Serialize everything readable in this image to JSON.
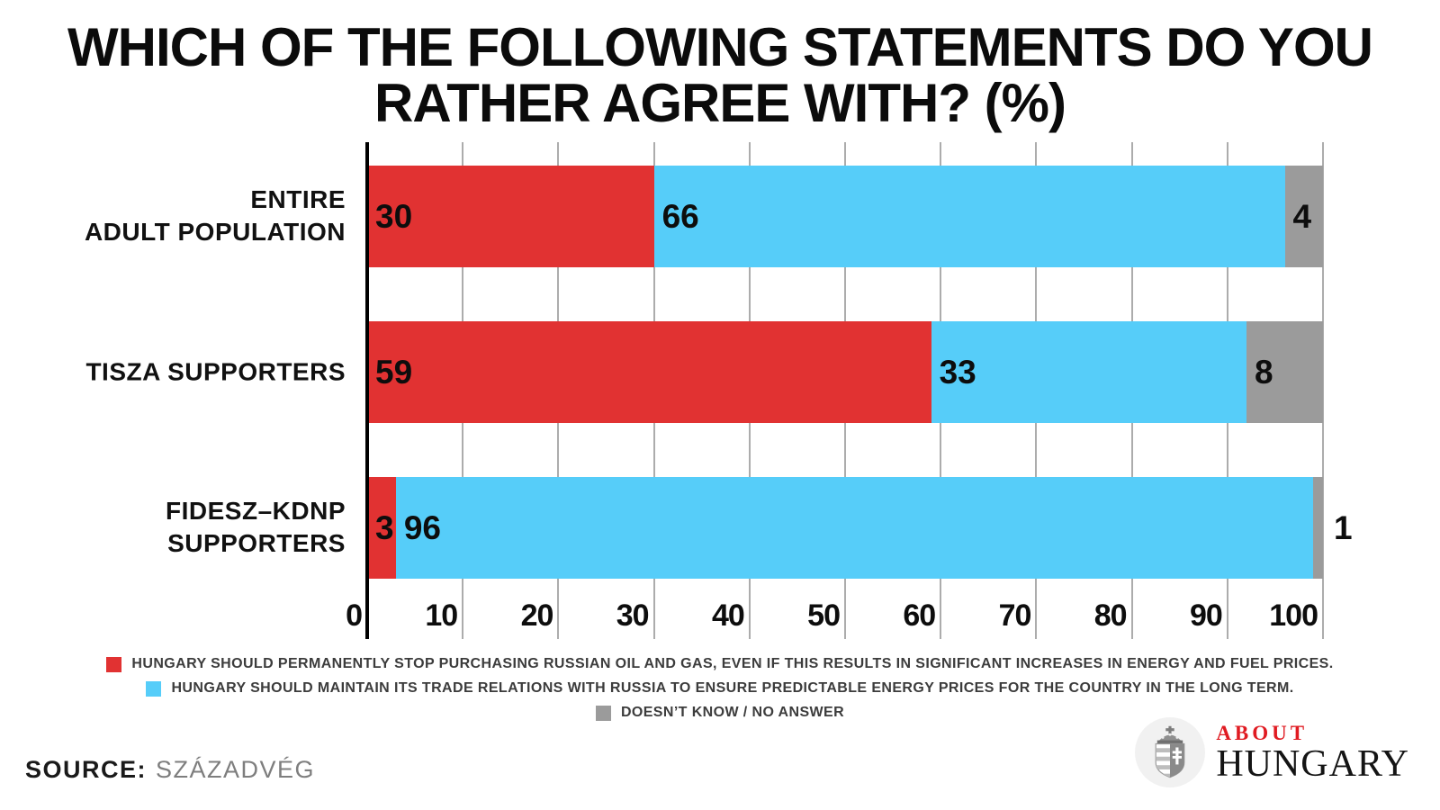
{
  "title_lines": [
    "WHICH OF THE FOLLOWING STATEMENTS DO YOU",
    "RATHER AGREE WITH? (%)"
  ],
  "chart_data": {
    "type": "bar",
    "orientation": "horizontal",
    "stacked": true,
    "title": "WHICH OF THE FOLLOWING STATEMENTS DO YOU RATHER AGREE WITH? (%)",
    "categories": [
      "ENTIRE ADULT POPULATION",
      "TISZA SUPPORTERS",
      "FIDESZ–KDNP SUPPORTERS"
    ],
    "category_label_lines": [
      [
        "ENTIRE",
        "ADULT POPULATION"
      ],
      [
        "TISZA SUPPORTERS"
      ],
      [
        "FIDESZ–KDNP",
        "SUPPORTERS"
      ]
    ],
    "series": [
      {
        "name": "HUNGARY SHOULD PERMANENTLY STOP PURCHASING RUSSIAN OIL AND GAS, EVEN IF THIS RESULTS IN SIGNIFICANT INCREASES IN ENERGY AND FUEL PRICES.",
        "color": "#e13232",
        "values": [
          30,
          59,
          3
        ]
      },
      {
        "name": "HUNGARY SHOULD MAINTAIN ITS TRADE RELATIONS WITH RUSSIA TO ENSURE PREDICTABLE ENERGY PRICES FOR THE COUNTRY IN THE LONG TERM.",
        "color": "#56cdf9",
        "values": [
          66,
          33,
          96
        ]
      },
      {
        "name": "DOESN’T KNOW / NO ANSWER",
        "color": "#9b9b9b",
        "values": [
          4,
          8,
          1
        ]
      }
    ],
    "x_ticks": [
      0,
      10,
      20,
      30,
      40,
      50,
      60,
      70,
      80,
      90,
      100
    ],
    "xlim": [
      0,
      100
    ],
    "grid": true,
    "grid_color": "#acacac",
    "axis_color": "#000000",
    "value_label_color": "#0d0d0d",
    "legend_position": "bottom"
  },
  "source": {
    "prefix": "SOURCE:",
    "name": "SZÁZADVÉG"
  },
  "logo": {
    "top_text": "ABOUT",
    "bottom_text": "HUNGARY",
    "accent_color": "#e01b22",
    "text_color": "#141414",
    "emblem": "hungarian-coat-of-arms"
  }
}
